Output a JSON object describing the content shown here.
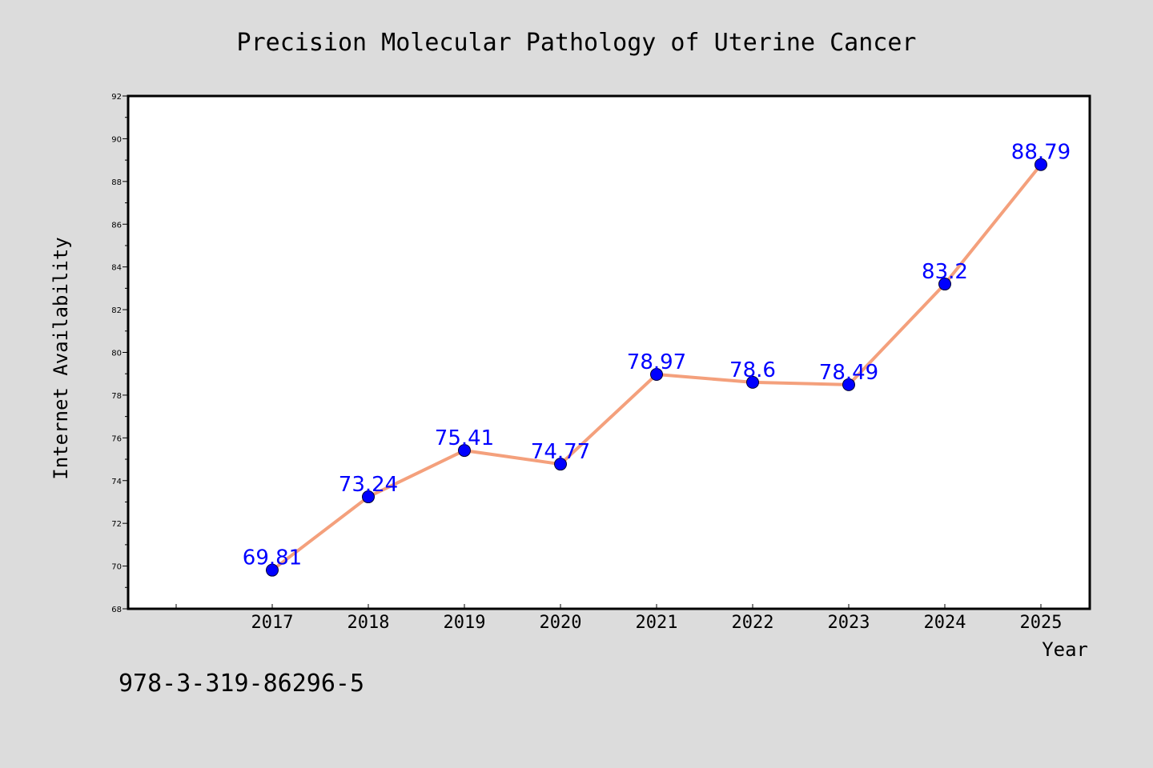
{
  "chart_data": {
    "type": "line",
    "title": "Precision Molecular Pathology of Uterine Cancer",
    "xlabel": "Year",
    "ylabel": "Internet Availability",
    "categories": [
      "2017",
      "2018",
      "2019",
      "2020",
      "2021",
      "2022",
      "2023",
      "2024",
      "2025"
    ],
    "series": [
      {
        "values": [
          69.81,
          73.24,
          75.41,
          74.77,
          78.97,
          78.6,
          78.49,
          83.2,
          88.79
        ]
      }
    ],
    "data_labels": [
      "69.81",
      "73.24",
      "75.41",
      "74.77",
      "78.97",
      "78.6",
      "78.49",
      "83.2",
      "88.79"
    ],
    "ylim": [
      68,
      92
    ],
    "y_ticks": [
      68,
      70,
      72,
      74,
      76,
      78,
      80,
      82,
      84,
      86,
      88,
      90,
      92
    ],
    "y_tick_labels": [
      "68",
      "70",
      "72",
      "74",
      "76",
      "78",
      "80",
      "82",
      "84",
      "86",
      "88",
      "90",
      "92"
    ],
    "grid": false,
    "legend": "none",
    "colors": {
      "line": "#f4a07c",
      "marker": "#0000ff",
      "label": "#0000ff",
      "plot_background": "#ffffff",
      "figure_background": "#dcdcdc"
    }
  },
  "footer": {
    "text": "978-3-319-86296-5"
  }
}
